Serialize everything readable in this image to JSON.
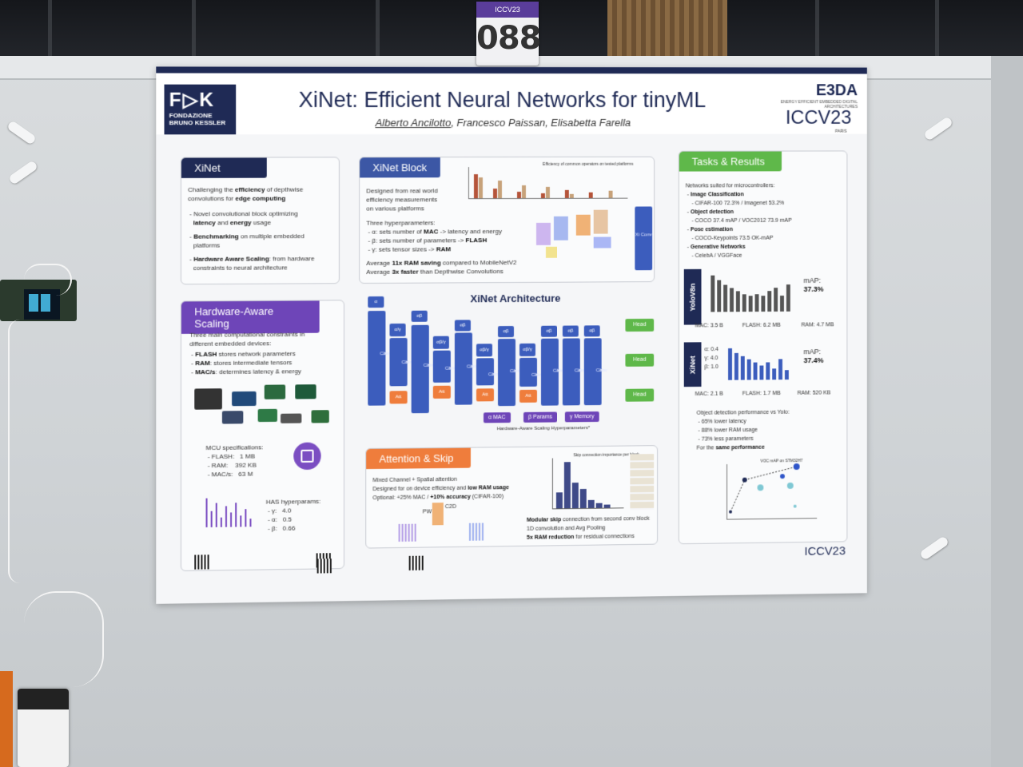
{
  "booth_tag": {
    "conference": "ICCV23",
    "number": "088"
  },
  "header": {
    "logo_left": {
      "mark": "F▷K",
      "line1": "FONDAZIONE",
      "line2": "BRUNO KESSLER"
    },
    "title": "XiNet: Efficient Neural Networks for tinyML",
    "authors": {
      "first": "Alberto Ancilotto",
      "rest": ", Francesco Paissan, Elisabetta Farella"
    },
    "logo_right": {
      "name": "E3DA",
      "tagline": "ENERGY EFFICIENT EMBEDDED DIGITAL ARCHITECTURES",
      "conf": "ICCV23",
      "city": "PARIS"
    }
  },
  "xinet": {
    "heading": "XiNet",
    "intro_a": "Challenging the ",
    "intro_b": "efficiency",
    "intro_c": " of depthwise",
    "intro_d": "convolutions for ",
    "intro_e": "edge computing",
    "b1_a": "Novel convolutional block optimizing",
    "b1_b": "latency",
    "b1_c": " and ",
    "b1_d": "energy",
    "b1_e": " usage",
    "b2_a": "Benchmarking",
    "b2_b": " on multiple embedded",
    "b2_c": "platforms",
    "b3_a": "Hardware Aware Scaling",
    "b3_b": ": from hardware",
    "b3_c": "constraints to neural architecture"
  },
  "block": {
    "heading": "XiNet Block",
    "desc1": "Designed from real world",
    "desc2": "efficiency measurements",
    "desc3": "on various platforms",
    "hp_title": "Three hyperparameters:",
    "hp1_a": "α: sets number of ",
    "hp1_b": "MAC",
    "hp1_c": " -> latency and energy",
    "hp2_a": "β: sets number of parameters -> ",
    "hp2_b": "FLASH",
    "hp3_a": "γ: sets tensor sizes -> ",
    "hp3_b": "RAM",
    "avg1_a": "Average ",
    "avg1_b": "11x RAM saving",
    "avg1_c": " compared to MobileNetV2",
    "avg2_a": "Average ",
    "avg2_b": "3x faster",
    "avg2_c": " than Depthwise Convolutions",
    "chart_caption": "Efficiency of common operators on tested platforms",
    "col_label": "Xi Conv"
  },
  "hw": {
    "heading": "Hardware-Aware Scaling",
    "intro1": "Three main computational constraints in",
    "intro2": "different  embedded devices:",
    "c1_a": "FLASH",
    "c1_b": " stores network parameters",
    "c2_a": "RAM",
    "c2_b": ": stores intermediate tensors",
    "c3_a": "MAC/s",
    "c3_b": ": determines latency & energy",
    "mcu_title": "MCU specifications:",
    "flash_k": "FLASH:",
    "flash_v": "1 MB",
    "ram_k": "RAM:",
    "ram_v": "392 KB",
    "macs_k": "MAC/s:",
    "macs_v": "63 M",
    "has_title": "HAS hyperparams:",
    "g_k": "γ:",
    "g_v": "4.0",
    "a_k": "α:",
    "a_v": "0.5",
    "b_k": "β:",
    "b_v": "0.66"
  },
  "arch": {
    "title": "XiNet Architecture",
    "xi": "Xi",
    "conv": "Conv",
    "att": "Att",
    "alpha": "α",
    "ab": "αβ",
    "ag": "α/γ",
    "abg": "αβ/γ",
    "head": "Head",
    "legend_a": "α  MAC",
    "legend_b": "β  Params",
    "legend_g": "γ  Memory",
    "caption": "Hardware-Aware Scaling Hyperparameters*"
  },
  "attn": {
    "heading": "Attention & Skip",
    "l1": "Mixed Channel + Spatial attention",
    "l2_a": "Designed for on device efficiency and ",
    "l2_b": "low RAM usage",
    "l3_a": "Optional: +25% MAC / ",
    "l3_b": "+10% accuracy",
    "l3_c": " (CIFAR-100)",
    "pw": "PW",
    "c2d": "C2D",
    "chart_title": "Skip connection importance per block",
    "s1_a": "Modular skip",
    "s1_b": " connection from second conv block",
    "s2": "1D convolution and Avg Pooling",
    "s3_a": "5x RAM reduction",
    "s3_b": " for residual connections"
  },
  "results": {
    "heading": "Tasks & Results",
    "intro": "Networks suited for microcontrollers:",
    "t1": "Image Classification",
    "t1_d": "CIFAR-100 72.3% / Imagenet 53.2%",
    "t2": "Object detection",
    "t2_d": "COCO 37.4 mAP / VOC2012 73.9 mAP",
    "t3": "Pose estimation",
    "t3_d": "COCO-Keypoints 73.5 OK-mAP",
    "t4": "Generative Networks",
    "t4_d": "CelebA / VGGFace",
    "yolo_label": "YoloV8n",
    "yolo_map_k": "mAP:",
    "yolo_map_v": "37.3%",
    "yolo_mac": "MAC: 3.5 B",
    "yolo_flash": "FLASH: 6.2 MB",
    "yolo_ram": "RAM: 4.7 MB",
    "xinet_label": "XiNet",
    "xinet_map_k": "mAP:",
    "xinet_map_v": "37.4%",
    "xinet_a": "α: 0.4",
    "xinet_g": "γ: 4.0",
    "xinet_b": "β: 1.0",
    "xinet_mac": "MAC: 2.1 B",
    "xinet_flash": "FLASH: 1.7 MB",
    "xinet_ram": "RAM: 520 KB",
    "perf_title": "Object detection performance vs Yolo:",
    "p1": "65% lower latency",
    "p2": "88% lower RAM usage",
    "p3": "73% less parameters",
    "p4_a": "For the ",
    "p4_b": "same performance",
    "scatter_title": "VOC mAP on STM32H7",
    "footer_logo": "ICCV23"
  },
  "colors": {
    "navy": "#1f2a55",
    "blue": "#3c5dbd",
    "orange": "#ef7d3c",
    "purple": "#6e45b8",
    "green": "#5fb84a"
  }
}
